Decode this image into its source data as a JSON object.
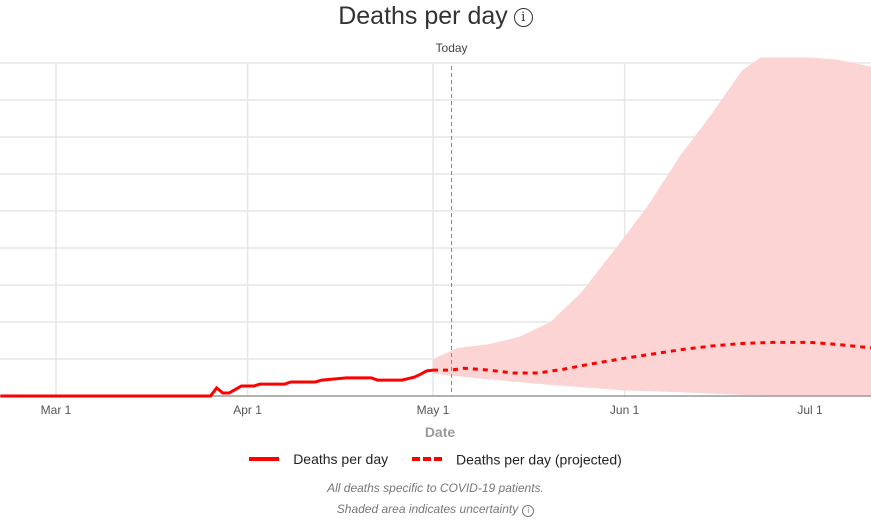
{
  "chart_data": {
    "type": "line",
    "title": "Deaths per day",
    "xlabel": "Date",
    "ylabel": "",
    "x_ticks": [
      {
        "date": "2020-03-01",
        "label": "Mar 1"
      },
      {
        "date": "2020-04-01",
        "label": "Apr 1"
      },
      {
        "date": "2020-05-01",
        "label": "May 1"
      },
      {
        "date": "2020-06-01",
        "label": "Jun 1"
      },
      {
        "date": "2020-07-01",
        "label": "Jul 1"
      }
    ],
    "xlim": [
      "2020-02-21",
      "2020-07-11"
    ],
    "ylim": [
      0,
      9
    ],
    "y_tick_labels_shown": false,
    "grid": true,
    "legend_placement": "bottom",
    "today": {
      "date": "2020-05-04",
      "label": "Today"
    },
    "colors": {
      "series": "#ff0000",
      "band": "#fcd4d4"
    },
    "series": [
      {
        "name": "Deaths per day",
        "style": "solid",
        "points": [
          [
            "2020-02-21",
            0
          ],
          [
            "2020-03-26",
            0
          ],
          [
            "2020-03-27",
            0.22
          ],
          [
            "2020-03-28",
            0.08
          ],
          [
            "2020-03-29",
            0.08
          ],
          [
            "2020-03-31",
            0.27
          ],
          [
            "2020-04-02",
            0.27
          ],
          [
            "2020-04-03",
            0.32
          ],
          [
            "2020-04-07",
            0.32
          ],
          [
            "2020-04-08",
            0.38
          ],
          [
            "2020-04-12",
            0.38
          ],
          [
            "2020-04-13",
            0.43
          ],
          [
            "2020-04-15",
            0.46
          ],
          [
            "2020-04-17",
            0.49
          ],
          [
            "2020-04-21",
            0.49
          ],
          [
            "2020-04-22",
            0.43
          ],
          [
            "2020-04-26",
            0.43
          ],
          [
            "2020-04-28",
            0.51
          ],
          [
            "2020-04-29",
            0.59
          ],
          [
            "2020-04-30",
            0.68
          ],
          [
            "2020-05-01",
            0.7
          ]
        ]
      },
      {
        "name": "Deaths per day (projected)",
        "style": "dashed",
        "points": [
          [
            "2020-05-01",
            0.7
          ],
          [
            "2020-05-04",
            0.7
          ],
          [
            "2020-05-06",
            0.75
          ],
          [
            "2020-05-10",
            0.7
          ],
          [
            "2020-05-14",
            0.62
          ],
          [
            "2020-05-18",
            0.62
          ],
          [
            "2020-05-22",
            0.72
          ],
          [
            "2020-05-26",
            0.85
          ],
          [
            "2020-06-01",
            1.02
          ],
          [
            "2020-06-05",
            1.12
          ],
          [
            "2020-06-10",
            1.25
          ],
          [
            "2020-06-15",
            1.35
          ],
          [
            "2020-06-20",
            1.42
          ],
          [
            "2020-06-25",
            1.45
          ],
          [
            "2020-07-01",
            1.45
          ],
          [
            "2020-07-05",
            1.4
          ],
          [
            "2020-07-11",
            1.3
          ]
        ]
      }
    ],
    "uncertainty_band": {
      "upper": [
        [
          "2020-05-01",
          1.0
        ],
        [
          "2020-05-05",
          1.3
        ],
        [
          "2020-05-10",
          1.4
        ],
        [
          "2020-05-15",
          1.6
        ],
        [
          "2020-05-20",
          2.0
        ],
        [
          "2020-05-25",
          2.8
        ],
        [
          "2020-06-01",
          4.3
        ],
        [
          "2020-06-05",
          5.2
        ],
        [
          "2020-06-10",
          6.5
        ],
        [
          "2020-06-15",
          7.6
        ],
        [
          "2020-06-20",
          8.8
        ],
        [
          "2020-06-23",
          9.15
        ],
        [
          "2020-07-01",
          9.15
        ],
        [
          "2020-07-05",
          9.1
        ],
        [
          "2020-07-11",
          8.9
        ]
      ],
      "lower": [
        [
          "2020-05-01",
          0.6
        ],
        [
          "2020-05-10",
          0.45
        ],
        [
          "2020-05-20",
          0.3
        ],
        [
          "2020-06-01",
          0.15
        ],
        [
          "2020-06-10",
          0.1
        ],
        [
          "2020-06-20",
          0.03
        ],
        [
          "2020-07-01",
          0
        ],
        [
          "2020-07-11",
          0
        ]
      ]
    }
  },
  "legend": [
    "Deaths per day",
    "Deaths per day (projected)"
  ],
  "notes": [
    "All deaths specific to COVID-19 patients.",
    "Shaded area indicates uncertainty"
  ]
}
